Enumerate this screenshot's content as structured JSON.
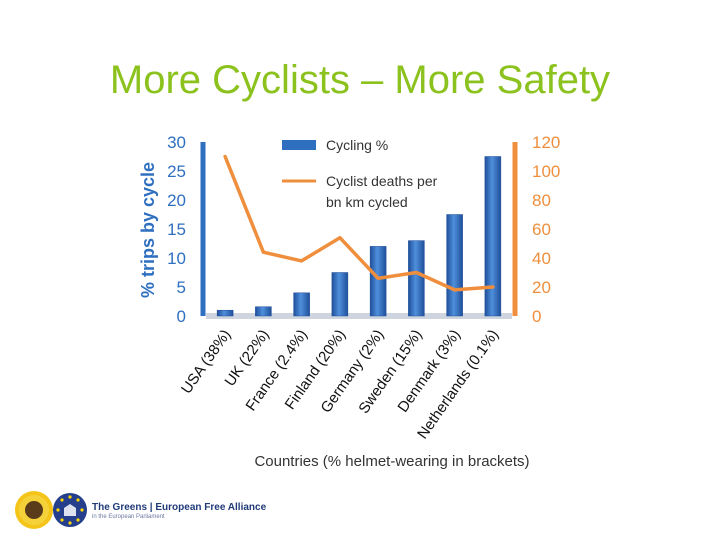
{
  "slide": {
    "title": "More Cyclists – More Safety"
  },
  "chart_data": {
    "type": "bar",
    "categories": [
      "USA (38%)",
      "UK (22%)",
      "France (2.4%)",
      "Finland (20%)",
      "Germany (2%)",
      "Sweden (15%)",
      "Denmark (3%)",
      "Netherlands (0.1%)"
    ],
    "series": [
      {
        "name": "Cycling %",
        "type": "bar",
        "axis": "left",
        "color": "#2f6fc0",
        "values": [
          1,
          1.6,
          4,
          7.5,
          12,
          13,
          17.5,
          27.5
        ]
      },
      {
        "name": "Cyclist deaths per bn km cycled",
        "type": "line",
        "axis": "right",
        "color": "#ef8f3d",
        "values": [
          110,
          44,
          38,
          54,
          26,
          30,
          18,
          20
        ]
      }
    ],
    "xlabel": "Countries (% helmet-wearing in brackets)",
    "ylabel": "% trips by cycle",
    "ylim": [
      0,
      30
    ],
    "yticks": [
      0,
      5,
      10,
      15,
      20,
      25,
      30
    ],
    "y2lim": [
      0,
      120
    ],
    "y2ticks": [
      0,
      20,
      40,
      60,
      80,
      100,
      120
    ],
    "left_axis_color": "#2f6fc0",
    "right_axis_color": "#ef8f3d",
    "legend_position": "top"
  },
  "footer": {
    "org_name": "The Greens | European Free Alliance",
    "org_sub": "in the European Parliament",
    "icons": [
      "sunflower-icon",
      "eu-stars-icon"
    ]
  }
}
